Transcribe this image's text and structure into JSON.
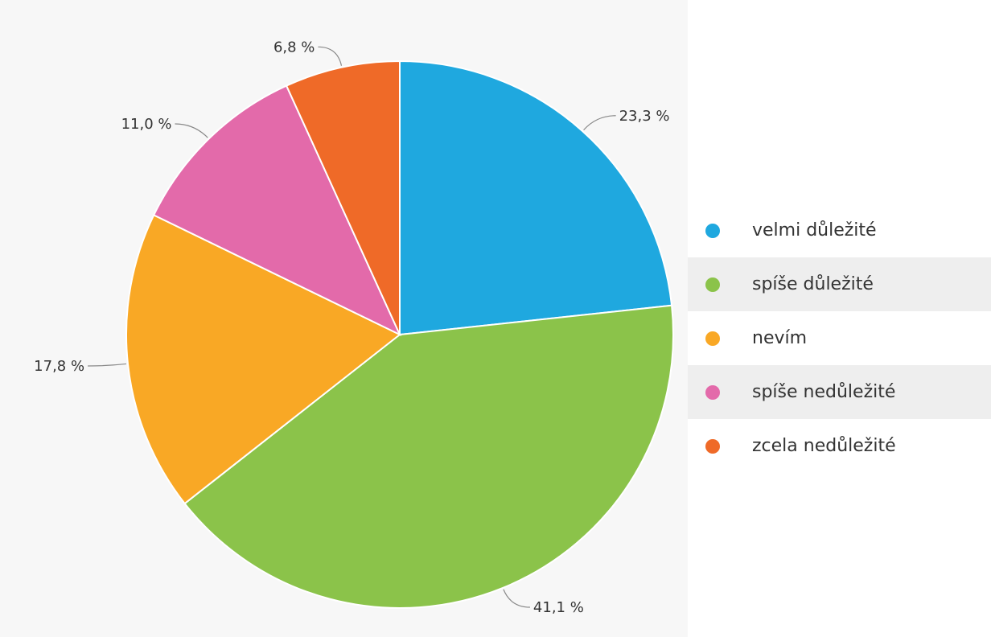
{
  "chart_data": {
    "type": "pie",
    "slices": [
      {
        "label": "velmi důležité",
        "value": 23.3,
        "value_label": "23,3 %",
        "color": "#1fa8df"
      },
      {
        "label": "spíše důležité",
        "value": 41.1,
        "value_label": "41,1 %",
        "color": "#8bc34a"
      },
      {
        "label": "nevím",
        "value": 17.8,
        "value_label": "17,8 %",
        "color": "#f9a825"
      },
      {
        "label": "spíše nedůležité",
        "value": 11.0,
        "value_label": "11,0 %",
        "color": "#e36aaa"
      },
      {
        "label": "zcela nedůležité",
        "value": 6.8,
        "value_label": "6,8 %",
        "color": "#ef6a28"
      }
    ],
    "start_angle": "12 o'clock",
    "direction": "clockwise",
    "legend_position": "right"
  }
}
